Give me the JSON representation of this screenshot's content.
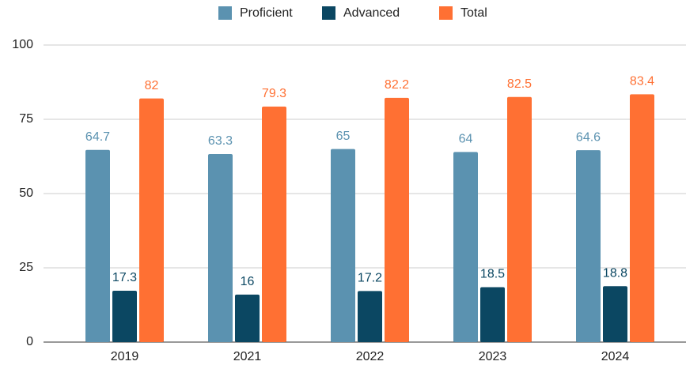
{
  "chart_data": {
    "type": "bar",
    "categories": [
      "2019",
      "2021",
      "2022",
      "2023",
      "2024"
    ],
    "series": [
      {
        "name": "Proficient",
        "color": "#5b92b0",
        "values": [
          64.7,
          63.3,
          65,
          64,
          64.6
        ]
      },
      {
        "name": "Advanced",
        "color": "#0b4762",
        "values": [
          17.3,
          16,
          17.2,
          18.5,
          18.8
        ]
      },
      {
        "name": "Total",
        "color": "#ff7033",
        "values": [
          82,
          79.3,
          82.2,
          82.5,
          83.4
        ]
      }
    ],
    "ylim": [
      0,
      100
    ],
    "yticks": [
      0,
      25,
      50,
      75,
      100
    ],
    "grid": true,
    "legend": "top"
  }
}
